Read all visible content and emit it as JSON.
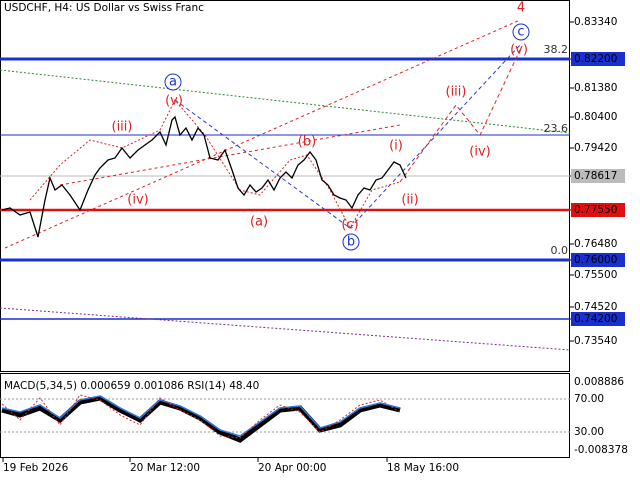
{
  "header": {
    "title": "USDCHF, H4:  US Dollar vs Swiss Franc"
  },
  "price_axis": {
    "labels": [
      "0.83340",
      "0.82200",
      "0.81380",
      "0.80400",
      "0.79420",
      "0.78617",
      "0.77550",
      "0.76480",
      "0.76000",
      "0.75500",
      "0.74520",
      "0.74200",
      "0.73540"
    ]
  },
  "indicator": {
    "label": "MACD(5,34,5) 0.000659 0.001086 RSI(14) 48.40",
    "axis_labels": [
      "0.008886",
      "70.00",
      "30.00",
      "-0.008378"
    ]
  },
  "time_axis": {
    "labels": [
      "19 Feb 2026",
      "20 Mar 12:00",
      "20 Apr 00:00",
      "18 May 16:00"
    ]
  },
  "wave_labels": [
    "4",
    "(v)",
    "(v)",
    "(iii)",
    "(b)",
    "(i)",
    "(iii)",
    "(iv)",
    "(iv)",
    "(a)",
    "(ii)",
    "(c)"
  ],
  "circled_labels": [
    "c",
    "a",
    "b"
  ],
  "fib_labels": [
    "38.2",
    "23.6",
    "0.0"
  ]
}
